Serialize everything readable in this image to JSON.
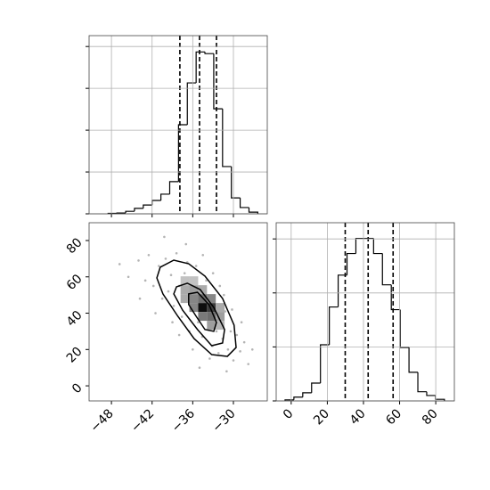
{
  "chart_data": [
    {
      "type": "histogram",
      "bins": [
        -48.5,
        -47.2,
        -45.9,
        -44.6,
        -43.3,
        -42.0,
        -40.7,
        -39.4,
        -38.1,
        -36.8,
        -35.5,
        -34.2,
        -32.9,
        -31.6,
        -30.3,
        -29.0,
        -27.7,
        -26.4
      ],
      "values": [
        0.01,
        0.02,
        0.06,
        0.13,
        0.21,
        0.32,
        0.47,
        0.77,
        2.13,
        3.13,
        3.87,
        3.83,
        2.51,
        1.13,
        0.38,
        0.15,
        0.04
      ],
      "quantiles": [
        -37.9,
        -35.0,
        -32.5
      ],
      "xlim": [
        -51.3,
        -25.0
      ],
      "ylim": [
        0,
        4.26
      ],
      "xticks": [
        -48,
        -42,
        -36,
        -30
      ],
      "yticks": [
        0,
        1,
        2,
        3,
        4
      ],
      "xtick_labels": false,
      "ytick_labels": false,
      "grid": true,
      "color": "#000000"
    },
    {
      "type": "scatter",
      "x": [
        -44,
        -43,
        -42.5,
        -41.8,
        -41,
        -40.5,
        -40,
        -39.6,
        -39.2,
        -38.8,
        -38.4,
        -38,
        -37.6,
        -37.2,
        -36.9,
        -36.5,
        -36.2,
        -35.8,
        -35.5,
        -35.2,
        -34.9,
        -34.6,
        -34.3,
        -34,
        -33.7,
        -33.4,
        -33.1,
        -32.8,
        -32.5,
        -32.2,
        -31.9,
        -31.6,
        -31.2,
        -30.8,
        -30.4,
        -30,
        -29.5,
        -29,
        -28.4,
        -27.8,
        -45.5,
        -46.8,
        -43.8,
        -40.2,
        -37,
        -35,
        -33,
        -31,
        -28.8,
        -27.2,
        -39,
        -36,
        -34.5,
        -32,
        -30.2,
        -41.5,
        -38,
        -36.8,
        -33.5,
        -31.4
      ],
      "y": [
        69,
        58,
        72,
        55,
        66,
        48,
        70,
        52,
        61,
        44,
        73,
        55,
        38,
        62,
        49,
        30,
        57,
        44,
        66,
        35,
        50,
        27,
        45,
        58,
        33,
        40,
        22,
        48,
        30,
        18,
        37,
        26,
        41,
        20,
        30,
        14,
        28,
        19,
        24,
        12,
        60,
        67,
        48,
        82,
        78,
        10,
        62,
        8,
        35,
        20,
        35,
        20,
        72,
        55,
        42,
        40,
        28,
        68,
        15,
        50
      ],
      "density": {
        "x": [
          -35.2,
          -33.9,
          -35.2,
          -36.5,
          -33.9,
          -36.5,
          -33.9,
          -32.6,
          -37.8,
          -36.5,
          -35.2,
          -32.6,
          -37.8,
          -32.6,
          -36.5,
          -37.8,
          -35.2,
          -33.9
        ],
        "y": [
          40.7,
          40.7,
          45.6,
          45.6,
          35.8,
          40.7,
          30.9,
          35.8,
          50.5,
          50.5,
          35.8,
          40.7,
          55.4,
          30.9,
          55.4,
          45.6,
          50.5,
          45.6
        ],
        "level": [
          1.0,
          0.8,
          0.6,
          0.5,
          0.6,
          0.5,
          0.4,
          0.4,
          0.35,
          0.4,
          0.55,
          0.35,
          0.25,
          0.3,
          0.25,
          0.35,
          0.35,
          0.5
        ]
      },
      "density_cell_size": [
        1.3,
        4.9
      ],
      "contours": [
        {
          "x": [
            -40.8,
            -38.8,
            -36.6,
            -34.2,
            -31.6,
            -29.9,
            -29.6,
            -30.9,
            -33.2,
            -35.8,
            -38.2,
            -40.4,
            -41.3
          ],
          "y": [
            65.3,
            69.2,
            67.2,
            60.4,
            48.1,
            33.4,
            21.1,
            16.2,
            17.2,
            26.0,
            38.3,
            50.6,
            59.4
          ]
        },
        {
          "x": [
            -38.4,
            -36.8,
            -34.9,
            -32.9,
            -31.3,
            -31.6,
            -33.2,
            -35.3,
            -37.5,
            -38.8
          ],
          "y": [
            54.5,
            56.5,
            53.0,
            43.2,
            31.0,
            23.6,
            22.1,
            31.0,
            41.7,
            50.6
          ]
        },
        {
          "x": [
            -36.6,
            -35.3,
            -33.6,
            -32.5,
            -32.9,
            -34.2,
            -35.5,
            -36.6
          ],
          "y": [
            50.6,
            51.5,
            44.7,
            34.9,
            30.0,
            31.0,
            38.3,
            44.7
          ]
        }
      ],
      "xlim": [
        -51.3,
        -25.0
      ],
      "ylim": [
        -8.3,
        89.8
      ],
      "xticks": [
        {
          "value": -48,
          "label": "−48"
        },
        {
          "value": -42,
          "label": "−42"
        },
        {
          "value": -36,
          "label": "−36"
        },
        {
          "value": -30,
          "label": "−30"
        }
      ],
      "yticks": [
        0,
        20,
        40,
        60,
        80
      ],
      "xtick_labels": true,
      "ytick_labels": true,
      "grid": false,
      "color": "#000000"
    },
    {
      "type": "histogram",
      "bins": [
        -3.4,
        1.5,
        6.4,
        11.3,
        16.2,
        21.1,
        26.0,
        30.9,
        35.8,
        40.7,
        45.6,
        50.5,
        55.4,
        60.3,
        65.2,
        70.1,
        75.0,
        79.9,
        84.8
      ],
      "values": [
        0.02,
        0.07,
        0.15,
        0.33,
        1.04,
        1.74,
        2.33,
        2.73,
        3.01,
        3.01,
        2.73,
        2.15,
        1.69,
        0.99,
        0.53,
        0.17,
        0.1,
        0.03
      ],
      "quantiles": [
        29.9,
        42.6,
        56.4
      ],
      "xlim": [
        -8.3,
        90.3
      ],
      "ylim": [
        0,
        3.3
      ],
      "xticks": [
        0,
        20,
        40,
        60,
        80
      ],
      "yticks": [
        0,
        1,
        2,
        3
      ],
      "xtick_labels": true,
      "ytick_labels": false,
      "grid": true,
      "color": "#000000"
    }
  ]
}
